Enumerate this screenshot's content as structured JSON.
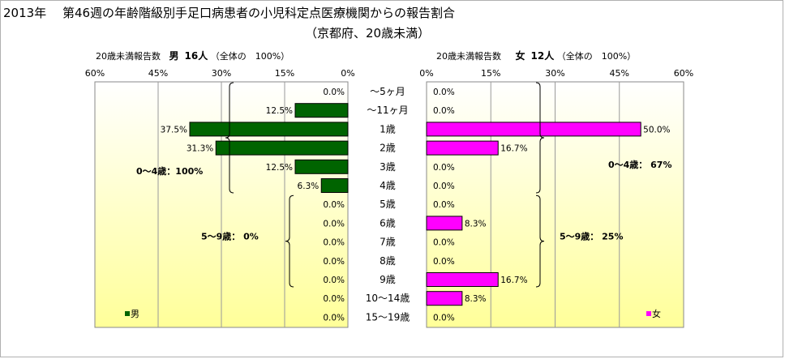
{
  "title": {
    "line1": "2013年　 第46週の年齢階級別手足口病患者の小児科定点医療機関からの報告割合",
    "line2": "（京都府、20歳未満）"
  },
  "left_header": {
    "label": "20歳未満報告数",
    "sex": "男",
    "count": "16人",
    "total": "（全体の　100%）"
  },
  "right_header": {
    "label": "20歳未満報告数",
    "sex": "女",
    "count": "12人",
    "total": "（全体の　100%）"
  },
  "colors": {
    "male": "#006400",
    "female": "#ff00ff",
    "background_top": "#ffffff",
    "background_bottom": "#ffff99"
  },
  "chart_data": [
    {
      "type": "bar",
      "orientation": "horizontal",
      "direction": "right-to-left",
      "categories": [
        "～5ヶ月",
        "～11ヶ月",
        "1歳",
        "2歳",
        "3歳",
        "4歳",
        "5歳",
        "6歳",
        "7歳",
        "8歳",
        "9歳",
        "10～14歳",
        "15～19歳"
      ],
      "series": [
        {
          "name": "男",
          "values": [
            0.0,
            12.5,
            37.5,
            31.3,
            12.5,
            6.3,
            0.0,
            0.0,
            0.0,
            0.0,
            0.0,
            0.0,
            0.0
          ]
        }
      ],
      "labels": [
        "0.0%",
        "12.5%",
        "37.5%",
        "31.3%",
        "12.5%",
        "6.3%",
        "0.0%",
        "0.0%",
        "0.0%",
        "0.0%",
        "0.0%",
        "0.0%",
        "0.0%"
      ],
      "xticks": [
        "60%",
        "45%",
        "30%",
        "15%",
        "0%"
      ],
      "xlim": [
        0,
        60
      ],
      "legend": "bottom-left",
      "brackets": [
        {
          "text": "0～4歳：100%"
        },
        {
          "text": "5～9歳：  0%"
        }
      ]
    },
    {
      "type": "bar",
      "orientation": "horizontal",
      "direction": "left-to-right",
      "categories": [
        "～5ヶ月",
        "～11ヶ月",
        "1歳",
        "2歳",
        "3歳",
        "4歳",
        "5歳",
        "6歳",
        "7歳",
        "8歳",
        "9歳",
        "10～14歳",
        "15～19歳"
      ],
      "series": [
        {
          "name": "女",
          "values": [
            0.0,
            0.0,
            50.0,
            16.7,
            0.0,
            0.0,
            0.0,
            8.3,
            0.0,
            0.0,
            16.7,
            8.3,
            0.0
          ]
        }
      ],
      "labels": [
        "0.0%",
        "0.0%",
        "50.0%",
        "16.7%",
        "0.0%",
        "0.0%",
        "0.0%",
        "8.3%",
        "0.0%",
        "0.0%",
        "16.7%",
        "8.3%",
        "0.0%"
      ],
      "xticks": [
        "0%",
        "15%",
        "30%",
        "45%",
        "60%"
      ],
      "xlim": [
        0,
        60
      ],
      "legend": "bottom-right",
      "brackets": [
        {
          "text": "0～4歳：  67%"
        },
        {
          "text": "5～9歳：  25%"
        }
      ]
    }
  ]
}
